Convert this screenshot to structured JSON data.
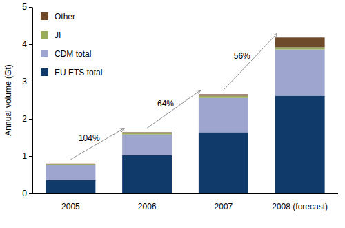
{
  "chart_data": {
    "type": "bar",
    "stacked": true,
    "legend": "upper left",
    "grid": false,
    "y_label": "Annual volume (Gt)",
    "categories": [
      "2005",
      "2006",
      "2007",
      "2008 (forecast)"
    ],
    "series": [
      {
        "name": "EU ETS total",
        "color": "#0f3a6a",
        "values": [
          0.36,
          1.02,
          1.64,
          2.62
        ]
      },
      {
        "name": "CDM total",
        "color": "#9ea5cf",
        "values": [
          0.4,
          0.56,
          0.92,
          1.24
        ]
      },
      {
        "name": "JI",
        "color": "#9aab5c",
        "values": [
          0.02,
          0.04,
          0.06,
          0.06
        ]
      },
      {
        "name": "Other",
        "color": "#6e4a2b",
        "values": [
          0.02,
          0.02,
          0.04,
          0.26
        ]
      }
    ],
    "annotations": [
      "104%",
      "64%",
      "56%"
    ],
    "ylim": [
      0,
      5
    ],
    "yticks": [
      0,
      1,
      2,
      3,
      4,
      5
    ]
  }
}
